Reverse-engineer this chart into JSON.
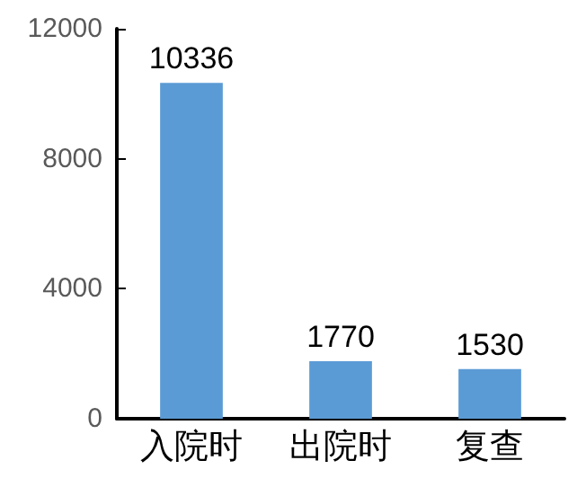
{
  "chart_data": {
    "type": "bar",
    "categories": [
      "入院时",
      "出院时",
      "复查"
    ],
    "values": [
      10336,
      1770,
      1530
    ],
    "color": "#5b9bd5",
    "ylim": [
      0,
      12000
    ],
    "yticks": [
      0,
      4000,
      8000,
      12000
    ],
    "data_labels": true
  }
}
